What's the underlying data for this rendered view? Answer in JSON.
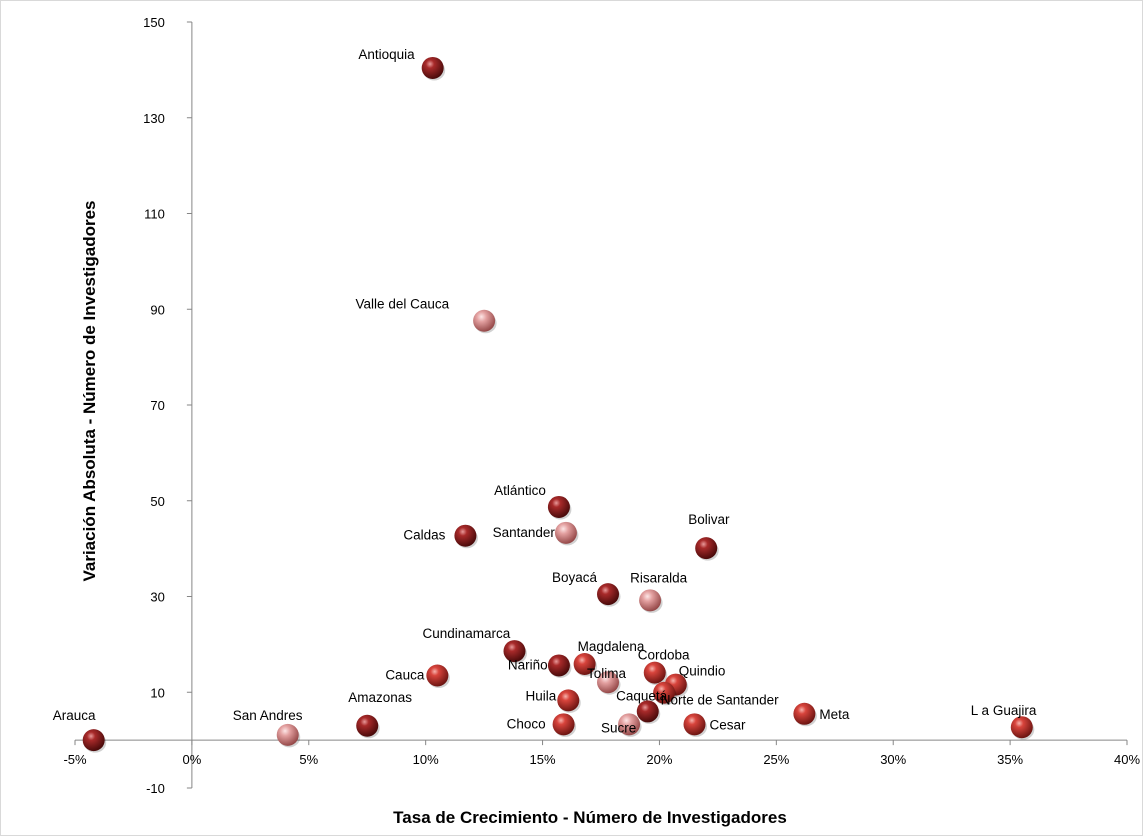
{
  "chart_data": {
    "type": "scatter",
    "title": "",
    "xlabel": "Tasa de Crecimiento  - Número de Investigadores",
    "ylabel": "Variación Absoluta - Número de Investigadores",
    "xlim": [
      -0.05,
      0.4
    ],
    "ylim": [
      -10,
      150
    ],
    "x_ticks": [
      -0.05,
      0,
      0.05,
      0.1,
      0.15,
      0.2,
      0.25,
      0.3,
      0.35,
      0.4
    ],
    "x_tick_labels": [
      "-5%",
      "0%",
      "5%",
      "10%",
      "15%",
      "20%",
      "25%",
      "30%",
      "35%",
      "40%"
    ],
    "y_ticks": [
      -10,
      10,
      30,
      50,
      70,
      90,
      110,
      130,
      150
    ],
    "y_tick_labels": [
      "-10",
      "10",
      "30",
      "50",
      "70",
      "90",
      "110",
      "130",
      "150"
    ],
    "grid": false,
    "legend": "none",
    "colors": {
      "dark": "#8b1a1a",
      "medium": "#c0302c",
      "light": "#d98a8a"
    },
    "points": [
      {
        "label": "Antioquia",
        "x": 0.103,
        "y": 140.4,
        "shade": "dark"
      },
      {
        "label": "Valle del Cauca",
        "x": 0.125,
        "y": 87.6,
        "shade": "light"
      },
      {
        "label": "Atlántico",
        "x": 0.157,
        "y": 48.7,
        "shade": "dark"
      },
      {
        "label": "Caldas",
        "x": 0.117,
        "y": 42.7,
        "shade": "dark"
      },
      {
        "label": "Santander",
        "x": 0.16,
        "y": 43.3,
        "shade": "light"
      },
      {
        "label": "Bolivar",
        "x": 0.22,
        "y": 40.1,
        "shade": "dark"
      },
      {
        "label": "Boyacá",
        "x": 0.178,
        "y": 30.5,
        "shade": "dark"
      },
      {
        "label": "Risaralda",
        "x": 0.196,
        "y": 29.2,
        "shade": "light"
      },
      {
        "label": "Cundinamarca",
        "x": 0.138,
        "y": 18.6,
        "shade": "dark"
      },
      {
        "label": "Magdalena",
        "x": 0.168,
        "y": 15.9,
        "shade": "medium"
      },
      {
        "label": "Nariño",
        "x": 0.157,
        "y": 15.6,
        "shade": "dark"
      },
      {
        "label": "Cordoba",
        "x": 0.198,
        "y": 14.1,
        "shade": "medium"
      },
      {
        "label": "Cauca",
        "x": 0.105,
        "y": 13.5,
        "shade": "medium"
      },
      {
        "label": "Tolima",
        "x": 0.178,
        "y": 12.1,
        "shade": "light"
      },
      {
        "label": "Quindio",
        "x": 0.207,
        "y": 11.6,
        "shade": "medium"
      },
      {
        "label": "Huila",
        "x": 0.161,
        "y": 8.3,
        "shade": "medium"
      },
      {
        "label": "Caquetá",
        "x": 0.202,
        "y": 9.9,
        "shade": "medium"
      },
      {
        "label": "Norte de Santander",
        "x": 0.195,
        "y": 6.0,
        "shade": "dark"
      },
      {
        "label": "Meta",
        "x": 0.262,
        "y": 5.5,
        "shade": "medium"
      },
      {
        "label": "Choco",
        "x": 0.159,
        "y": 3.3,
        "shade": "medium"
      },
      {
        "label": "Sucre",
        "x": 0.187,
        "y": 3.3,
        "shade": "light"
      },
      {
        "label": "Cesar",
        "x": 0.215,
        "y": 3.3,
        "shade": "medium"
      },
      {
        "label": "Amazonas",
        "x": 0.075,
        "y": 3.0,
        "shade": "dark"
      },
      {
        "label": "L a Guajira",
        "x": 0.355,
        "y": 2.7,
        "shade": "medium"
      },
      {
        "label": "San Andres",
        "x": 0.041,
        "y": 1.1,
        "shade": "light"
      },
      {
        "label": "Arauca",
        "x": -0.042,
        "y": 0.0,
        "shade": "dark"
      }
    ]
  }
}
